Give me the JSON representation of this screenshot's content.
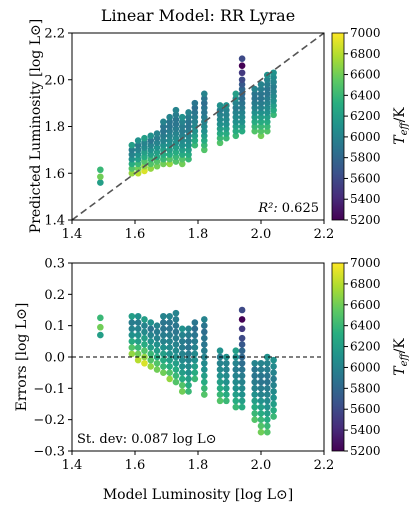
{
  "chart_data": [
    {
      "type": "scatter",
      "title": "Linear Model: RR Lyrae",
      "xlabel": "",
      "ylabel": "Predicted Luminosity [log L⊙]",
      "xlim": [
        1.4,
        2.2
      ],
      "ylim": [
        1.4,
        2.2
      ],
      "xticks": [
        "1.4",
        "1.6",
        "1.8",
        "2.0",
        "2.2"
      ],
      "yticks": [
        "1.4",
        "1.6",
        "1.8",
        "2.0",
        "2.2"
      ],
      "reference_line": {
        "style": "dashed",
        "color": "#555555",
        "from": [
          1.4,
          1.4
        ],
        "to": [
          2.2,
          2.2
        ]
      },
      "annotation_label": "R²:",
      "annotation_value": "0.625",
      "colorbar": {
        "label": "T_eff / K",
        "min": 5200,
        "max": 7000,
        "ticks": [
          "7000",
          "6800",
          "6600",
          "6400",
          "6200",
          "6000",
          "5800",
          "5600",
          "5400",
          "5200"
        ],
        "colormap": "viridis"
      },
      "point_groups": [
        {
          "x": 1.49,
          "y": [
            1.56,
            1.585,
            1.615
          ],
          "t": [
            6200,
            6600,
            6400
          ]
        },
        {
          "x": 1.59,
          "y": [
            1.6,
            1.62,
            1.64,
            1.66,
            1.68,
            1.7,
            1.72
          ],
          "t": [
            6700,
            6500,
            6300,
            6100,
            6000,
            5950,
            6200
          ]
        },
        {
          "x": 1.61,
          "y": [
            1.6,
            1.62,
            1.64,
            1.66,
            1.68,
            1.7,
            1.72,
            1.74
          ],
          "t": [
            6800,
            6600,
            6400,
            6200,
            6100,
            6000,
            5950,
            6100
          ]
        },
        {
          "x": 1.63,
          "y": [
            1.61,
            1.63,
            1.65,
            1.67,
            1.69,
            1.71,
            1.73,
            1.75
          ],
          "t": [
            6900,
            6700,
            6500,
            6300,
            6200,
            6050,
            6000,
            6200
          ]
        },
        {
          "x": 1.65,
          "y": [
            1.62,
            1.64,
            1.66,
            1.68,
            1.7,
            1.72,
            1.74,
            1.76
          ],
          "t": [
            6700,
            6500,
            6400,
            6200,
            6100,
            6000,
            5900,
            6100
          ]
        },
        {
          "x": 1.67,
          "y": [
            1.63,
            1.65,
            1.67,
            1.69,
            1.71,
            1.73,
            1.75,
            1.77
          ],
          "t": [
            6600,
            6500,
            6300,
            6200,
            6100,
            6000,
            5950,
            6000
          ]
        },
        {
          "x": 1.69,
          "y": [
            1.64,
            1.66,
            1.68,
            1.7,
            1.72,
            1.74,
            1.76,
            1.78,
            1.8,
            1.82
          ],
          "t": [
            6600,
            6400,
            6300,
            6200,
            6100,
            6000,
            5950,
            5900,
            5900,
            6000
          ]
        },
        {
          "x": 1.71,
          "y": [
            1.64,
            1.66,
            1.68,
            1.7,
            1.72,
            1.74,
            1.76,
            1.78,
            1.8,
            1.82,
            1.84
          ],
          "t": [
            6700,
            6500,
            6300,
            6200,
            6100,
            6050,
            6000,
            5950,
            5900,
            5900,
            6000
          ]
        },
        {
          "x": 1.73,
          "y": [
            1.65,
            1.67,
            1.69,
            1.71,
            1.73,
            1.75,
            1.77,
            1.79,
            1.81,
            1.83,
            1.85,
            1.87
          ],
          "t": [
            6500,
            6400,
            6300,
            6200,
            6100,
            6050,
            6000,
            5950,
            5900,
            5900,
            5950,
            6000
          ]
        },
        {
          "x": 1.75,
          "y": [
            1.64,
            1.66,
            1.68,
            1.7,
            1.72,
            1.74,
            1.76,
            1.78,
            1.8,
            1.82,
            1.84
          ],
          "t": [
            6600,
            6500,
            6300,
            6200,
            6100,
            6050,
            6000,
            5950,
            5950,
            6000,
            6100
          ]
        },
        {
          "x": 1.77,
          "y": [
            1.66,
            1.68,
            1.7,
            1.72,
            1.74,
            1.76,
            1.78,
            1.8,
            1.82,
            1.84,
            1.86
          ],
          "t": [
            6400,
            6300,
            6200,
            6100,
            6050,
            6000,
            5950,
            5900,
            5900,
            5950,
            6000
          ]
        },
        {
          "x": 1.79,
          "y": [
            1.72,
            1.74,
            1.76,
            1.78,
            1.8,
            1.82,
            1.84,
            1.86,
            1.88,
            1.9
          ],
          "t": [
            6400,
            6300,
            6200,
            6100,
            6050,
            6000,
            5950,
            5900,
            5850,
            5900
          ]
        },
        {
          "x": 1.82,
          "y": [
            1.7,
            1.72,
            1.74,
            1.76,
            1.78,
            1.8,
            1.82,
            1.84,
            1.86,
            1.88,
            1.9,
            1.92,
            1.94
          ],
          "t": [
            6500,
            6400,
            6300,
            6200,
            6100,
            6050,
            6000,
            5950,
            5900,
            5900,
            5850,
            5900,
            6000
          ]
        },
        {
          "x": 1.87,
          "y": [
            1.73,
            1.75,
            1.77,
            1.79,
            1.81,
            1.83,
            1.85,
            1.87,
            1.89
          ],
          "t": [
            6500,
            6400,
            6300,
            6200,
            6100,
            6050,
            6000,
            5950,
            6100
          ]
        },
        {
          "x": 1.89,
          "y": [
            1.75,
            1.77,
            1.79,
            1.81,
            1.83,
            1.85,
            1.87,
            1.89
          ],
          "t": [
            6400,
            6300,
            6200,
            6100,
            6050,
            6000,
            6000,
            6100
          ]
        },
        {
          "x": 1.92,
          "y": [
            1.76,
            1.78,
            1.8,
            1.82,
            1.84,
            1.86,
            1.88,
            1.9,
            1.92,
            1.94
          ],
          "t": [
            6400,
            6300,
            6200,
            6100,
            6050,
            6000,
            5950,
            6000,
            6100,
            6200
          ]
        },
        {
          "x": 1.94,
          "y": [
            1.78,
            1.8,
            1.82,
            1.84,
            1.86,
            1.88,
            1.9,
            1.92,
            1.94,
            1.96,
            1.98,
            2.0,
            2.03,
            2.06,
            2.09
          ],
          "t": [
            6300,
            6200,
            6100,
            6050,
            6000,
            5950,
            5900,
            5850,
            5800,
            5800,
            5700,
            5600,
            5500,
            5200,
            5600
          ]
        },
        {
          "x": 1.98,
          "y": [
            1.78,
            1.8,
            1.82,
            1.84,
            1.86,
            1.88,
            1.9,
            1.92,
            1.94,
            1.96
          ],
          "t": [
            6500,
            6400,
            6300,
            6200,
            6100,
            6000,
            5950,
            5900,
            5900,
            6000
          ]
        },
        {
          "x": 2.0,
          "y": [
            1.76,
            1.78,
            1.8,
            1.82,
            1.84,
            1.86,
            1.88,
            1.9,
            1.92,
            1.94,
            1.96,
            1.98
          ],
          "t": [
            6600,
            6500,
            6400,
            6300,
            6200,
            6100,
            6000,
            5950,
            5900,
            5900,
            5950,
            6000
          ]
        },
        {
          "x": 2.02,
          "y": [
            1.78,
            1.8,
            1.82,
            1.84,
            1.86,
            1.88,
            1.9,
            1.92,
            1.94,
            1.96,
            1.98,
            2.0,
            2.02
          ],
          "t": [
            6500,
            6400,
            6300,
            6200,
            6100,
            6050,
            6000,
            5950,
            5900,
            5900,
            5950,
            6000,
            6100
          ]
        },
        {
          "x": 2.04,
          "y": [
            1.85,
            1.87,
            1.89,
            1.91,
            1.93,
            1.95,
            1.97,
            1.99,
            2.01,
            2.03
          ],
          "t": [
            6400,
            6300,
            6200,
            6100,
            6050,
            6000,
            5950,
            6000,
            6050,
            6100
          ]
        }
      ]
    },
    {
      "type": "scatter",
      "title": "",
      "xlabel": "Model Luminosity [log L⊙]",
      "ylabel": "Errors [log L⊙]",
      "xlim": [
        1.4,
        2.2
      ],
      "ylim": [
        -0.3,
        0.3
      ],
      "xticks": [
        "1.4",
        "1.6",
        "1.8",
        "2.0",
        "2.2"
      ],
      "yticks": [
        "0.3",
        "0.2",
        "0.1",
        "0.0",
        "−0.1",
        "−0.2",
        "−0.3"
      ],
      "reference_line": {
        "style": "dashed",
        "color": "#000000",
        "y": 0.0
      },
      "annotation": "St. dev: 0.087 log L⊙",
      "colorbar": {
        "label": "T_eff / K",
        "min": 5200,
        "max": 7000,
        "ticks": [
          "7000",
          "6800",
          "6600",
          "6400",
          "6200",
          "6000",
          "5800",
          "5600",
          "5400",
          "5200"
        ],
        "colormap": "viridis"
      },
      "residuals_of": "panel 1: error = predicted - model"
    }
  ]
}
